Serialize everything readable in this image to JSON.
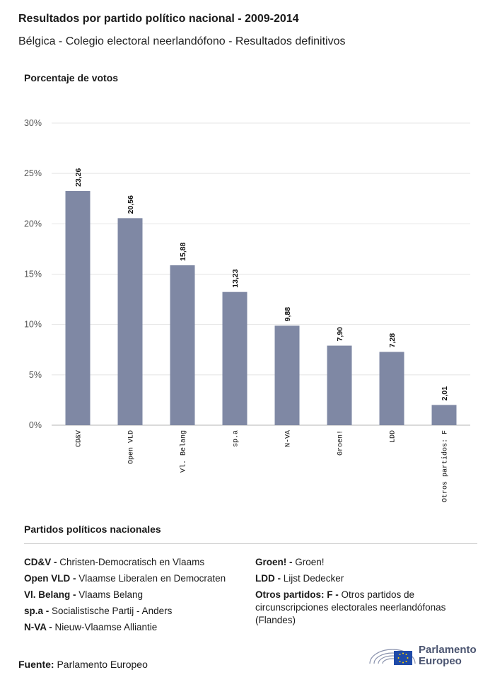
{
  "header": {
    "title": "Resultados por partido político nacional - 2009-2014",
    "subtitle": "Bélgica - Colegio electoral neerlandófono - Resultados definitivos"
  },
  "chart_data": {
    "type": "bar",
    "ylabel": "Porcentaje de votos",
    "categories": [
      "CD&V",
      "Open VLD",
      "Vl. Belang",
      "sp.a",
      "N-VA",
      "Groen!",
      "LDD",
      "Otros partidos: F"
    ],
    "values": [
      23.26,
      20.56,
      15.88,
      13.23,
      9.88,
      7.9,
      7.28,
      2.01
    ],
    "value_labels": [
      "23,26",
      "20,56",
      "15,88",
      "13,23",
      "9,88",
      "7,90",
      "7,28",
      "2,01"
    ],
    "ylim": [
      0,
      30
    ],
    "yticks": [
      0,
      5,
      10,
      15,
      20,
      25,
      30
    ],
    "ytick_labels": [
      "0%",
      "5%",
      "10%",
      "15%",
      "20%",
      "25%",
      "30%"
    ],
    "grid": true,
    "bar_color": "#7f88a4"
  },
  "legend": {
    "title": "Partidos políticos nacionales",
    "left": [
      {
        "abbr": "CD&V -",
        "full": "Christen-Democratisch en Vlaams"
      },
      {
        "abbr": "Open VLD -",
        "full": "Vlaamse Liberalen en Democraten"
      },
      {
        "abbr": "Vl. Belang -",
        "full": "Vlaams Belang"
      },
      {
        "abbr": "sp.a -",
        "full": "Socialistische Partij - Anders"
      },
      {
        "abbr": "N-VA -",
        "full": "Nieuw-Vlaamse Alliantie"
      }
    ],
    "right": [
      {
        "abbr": "Groen! -",
        "full": "Groen!"
      },
      {
        "abbr": "LDD -",
        "full": "Lijst Dedecker"
      },
      {
        "abbr": "Otros partidos: F -",
        "full": "Otros partidos de circunscripciones electorales neerlandófonas (Flandes)"
      }
    ]
  },
  "footer": {
    "source_label": "Fuente:",
    "source_value": "Parlamento Europeo",
    "logo_line1": "Parlamento",
    "logo_line2": "Europeo",
    "logo_icon": "european-parliament-logo-icon"
  }
}
